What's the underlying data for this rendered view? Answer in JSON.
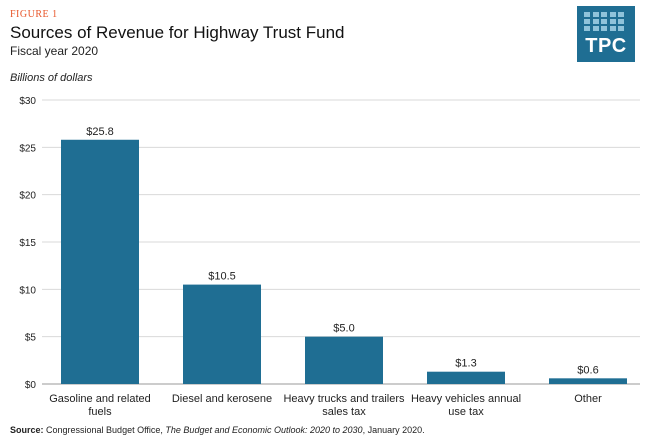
{
  "header": {
    "figure_label": "FIGURE 1",
    "title": "Sources of Revenue for Highway Trust Fund",
    "subtitle": "Fiscal year 2020",
    "unit_label": "Billions of dollars"
  },
  "logo": {
    "text": "TPC",
    "color": "#1f6e93"
  },
  "chart_data": {
    "type": "bar",
    "title": "Sources of Revenue for Highway Trust Fund",
    "subtitle": "Fiscal year 2020",
    "ylabel": "Billions of dollars",
    "xlabel": "",
    "categories": [
      [
        "Gasoline and related",
        "fuels"
      ],
      [
        "Diesel and kerosene"
      ],
      [
        "Heavy trucks and trailers",
        "sales tax"
      ],
      [
        "Heavy vehicles annual",
        "use tax"
      ],
      [
        "Other"
      ]
    ],
    "values": [
      25.8,
      10.5,
      5.0,
      1.3,
      0.6
    ],
    "value_labels": [
      "$25.8",
      "$10.5",
      "$5.0",
      "$1.3",
      "$0.6"
    ],
    "ylim": [
      0,
      30
    ],
    "yticks": [
      0,
      5,
      10,
      15,
      20,
      25,
      30
    ],
    "ytick_labels": [
      "$0",
      "$5",
      "$10",
      "$15",
      "$20",
      "$25",
      "$30"
    ],
    "grid": true,
    "legend": "none",
    "bar_color": "#1f6e93",
    "grid_color": "#d9d9d9"
  },
  "source": {
    "label": "Source:",
    "text1": " Congressional Budget Office, ",
    "italic": "The Budget and Economic Outlook: 2020 to 2030",
    "text2": ", January 2020."
  }
}
